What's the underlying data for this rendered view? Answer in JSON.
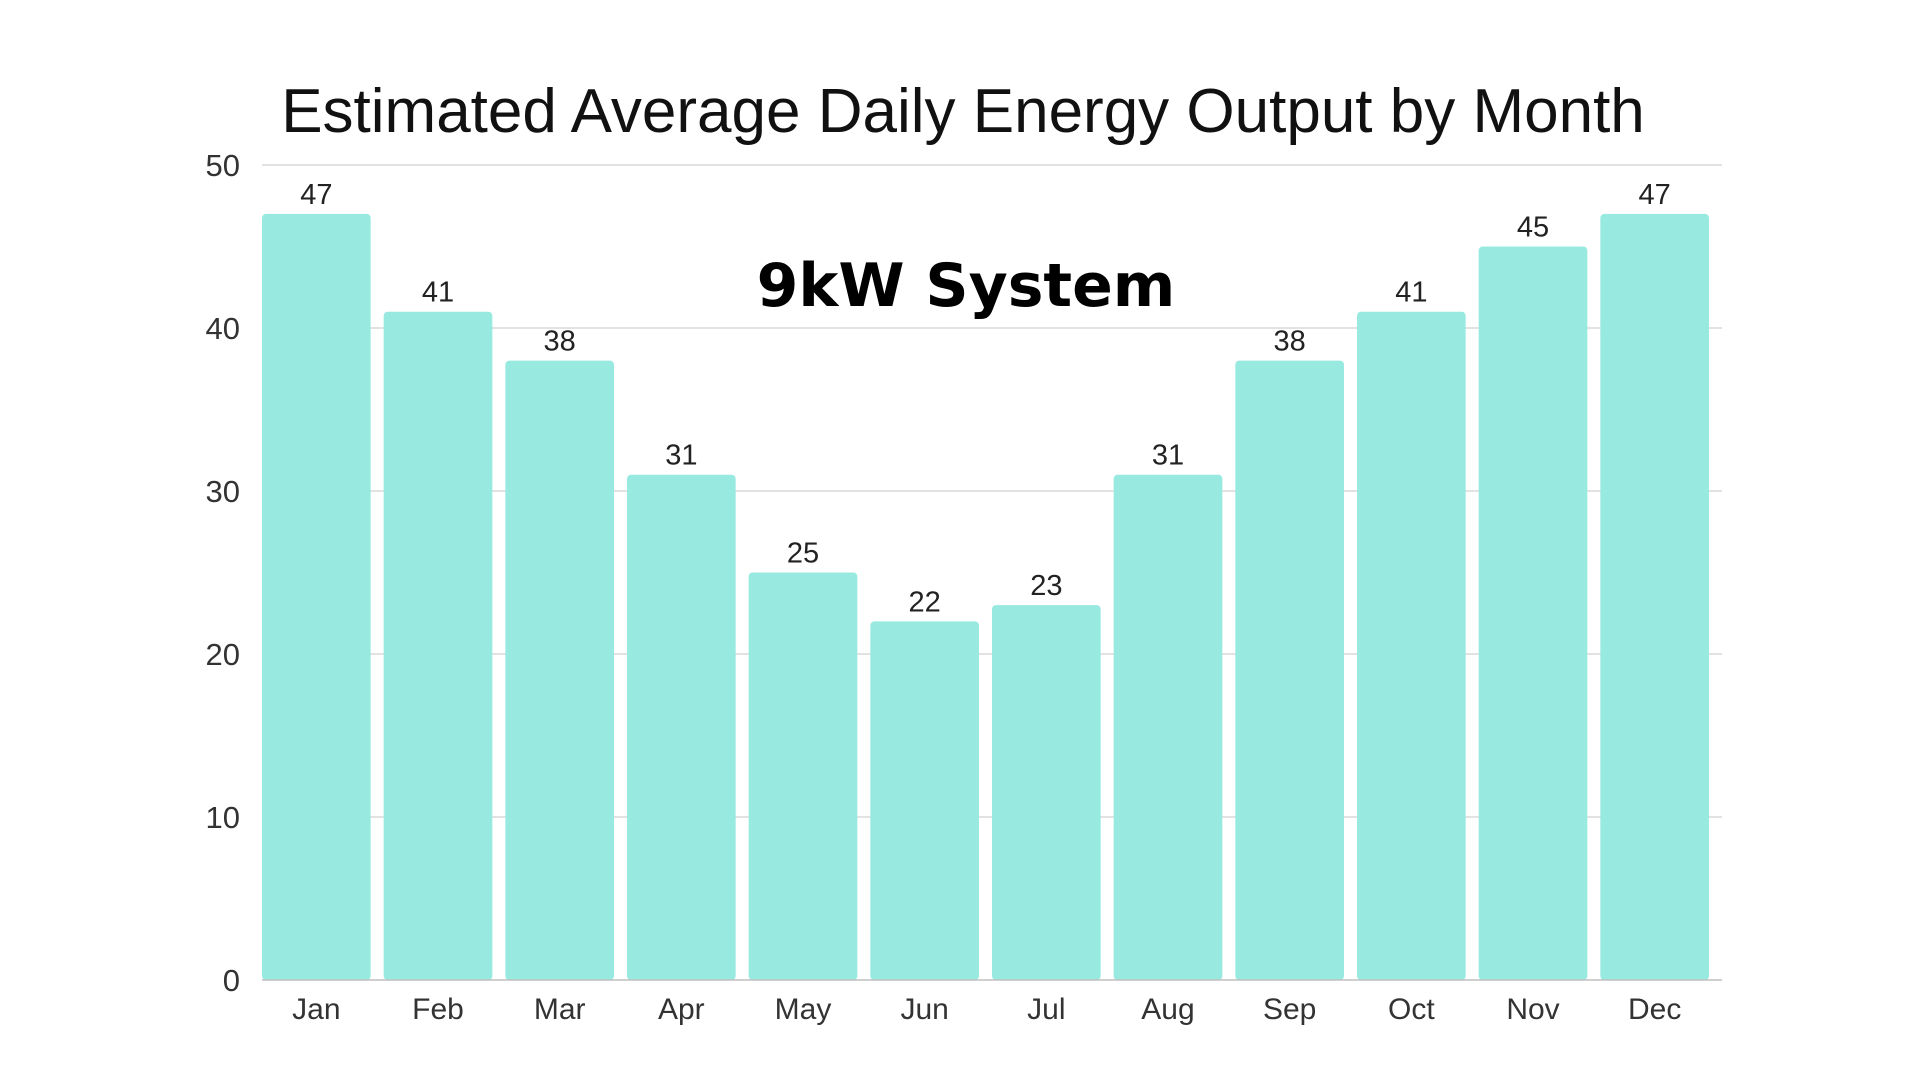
{
  "chart_data": {
    "type": "bar",
    "title": "Estimated Average Daily Energy Output by Month",
    "subtitle": "9kW System",
    "xlabel": "",
    "ylabel": "",
    "categories": [
      "Jan",
      "Feb",
      "Mar",
      "Apr",
      "May",
      "Jun",
      "Jul",
      "Aug",
      "Sep",
      "Oct",
      "Nov",
      "Dec"
    ],
    "values": [
      47,
      41,
      38,
      31,
      25,
      22,
      23,
      31,
      38,
      41,
      45,
      47
    ],
    "ylim": [
      0,
      50
    ],
    "yticks": [
      0,
      10,
      20,
      30,
      40,
      50
    ],
    "grid": true,
    "legend": "none",
    "bar_color": "#98eae0"
  }
}
